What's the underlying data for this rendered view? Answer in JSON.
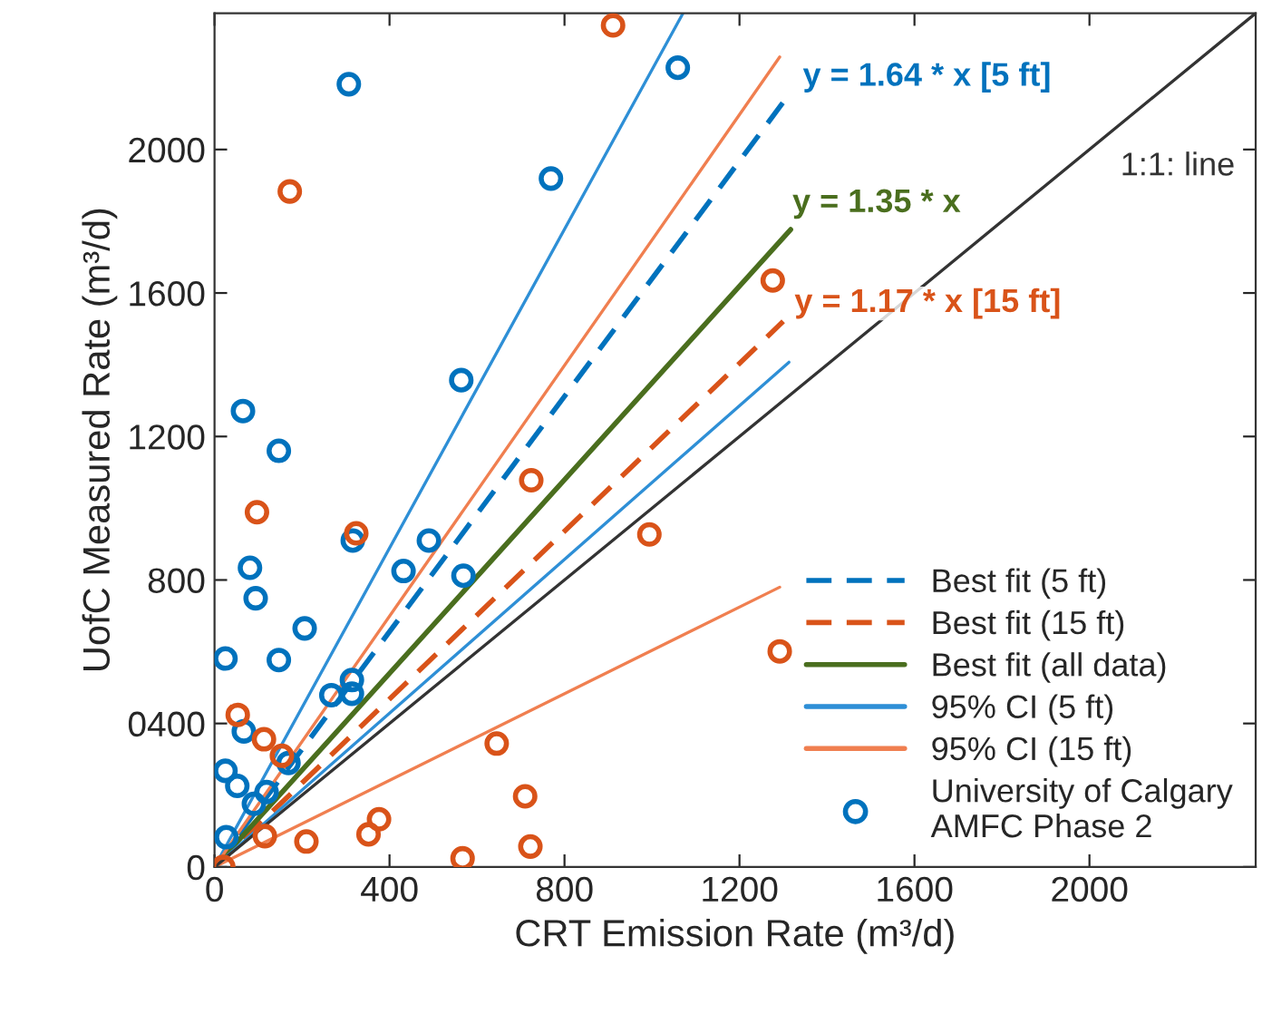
{
  "chart_data": {
    "type": "scatter",
    "xlabel": "CRT Emission Rate (m³/d)",
    "ylabel": "UofC Measured Rate (m³/d)",
    "xlim": [
      0,
      2380
    ],
    "ylim": [
      0,
      2380
    ],
    "xticks": [
      0,
      400,
      800,
      1200,
      1600,
      2000
    ],
    "yticks": [
      0,
      {
        "value": 400,
        "label": "0400"
      },
      800,
      1200,
      1600,
      2000
    ],
    "grid": false,
    "legend": "bottom right",
    "series": [
      {
        "type": "line",
        "name": "Best fit (5 ft)",
        "color": "#0072bd",
        "line_style": "dashed",
        "x": [
          0,
          1305
        ],
        "values": [
          0,
          2140
        ]
      },
      {
        "type": "line",
        "name": "Best fit (15 ft)",
        "color": "#d95319",
        "line_style": "dashed",
        "x": [
          0,
          1300
        ],
        "values": [
          0,
          1521
        ]
      },
      {
        "type": "line",
        "name": "Best fit (all data)",
        "color": "#4a6e1e",
        "line_style": "solid",
        "x": [
          0,
          1317
        ],
        "values": [
          0,
          1777
        ]
      },
      {
        "type": "line",
        "name": "95% CI (5 ft)",
        "color": "#2e8fd6",
        "line_style": "solid",
        "x": [
          0,
          1071
        ],
        "values": [
          0,
          2380
        ]
      },
      {
        "type": "line",
        "color": "#2e8fd6",
        "line_style": "solid",
        "x": [
          0,
          1313
        ],
        "values": [
          0,
          1407
        ]
      },
      {
        "type": "line",
        "name": "95% CI (15 ft)",
        "color": "#f07f50",
        "line_style": "solid",
        "x": [
          0,
          1292
        ],
        "values": [
          0,
          2258
        ]
      },
      {
        "type": "line",
        "color": "#f07f50",
        "line_style": "solid",
        "x": [
          0,
          1292
        ],
        "values": [
          0,
          780
        ]
      },
      {
        "type": "line",
        "color": "#333333",
        "line_style": "solid",
        "x": [
          0,
          2380
        ],
        "values": [
          0,
          2380
        ]
      },
      {
        "name": "University of Calgary\nAMFC Phase 2",
        "color": "#0072bd",
        "marker": "circle",
        "x": [
          307,
          769,
          564,
          65,
          147,
          1059,
          81,
          94,
          25,
          147,
          206,
          314,
          314,
          316,
          267,
          432,
          490,
          569,
          67,
          25,
          52,
          90,
          119,
          169,
          27
        ],
        "values": [
          2182,
          1919,
          1357,
          1271,
          1160,
          2228,
          834,
          749,
          581,
          577,
          665,
          521,
          483,
          910,
          479,
          825,
          910,
          812,
          378,
          268,
          226,
          176,
          209,
          290,
          83
        ]
      },
      {
        "color": "#d95319",
        "marker": "circle",
        "x": [
          97,
          324,
          724,
          53,
          113,
          154,
          645,
          710,
          722,
          567,
          376,
          352,
          210,
          115,
          20,
          172,
          911,
          1276,
          994,
          1292
        ],
        "values": [
          989,
          930,
          1078,
          424,
          356,
          310,
          344,
          197,
          57,
          24,
          133,
          91,
          71,
          86,
          0,
          1883,
          2346,
          1635,
          927,
          601
        ]
      }
    ],
    "annotations": [
      "y = 1.64 * x [5 ft]",
      "y = 1.35 * x",
      "y = 1.17 * x [15 ft]",
      "1:1: line"
    ]
  }
}
